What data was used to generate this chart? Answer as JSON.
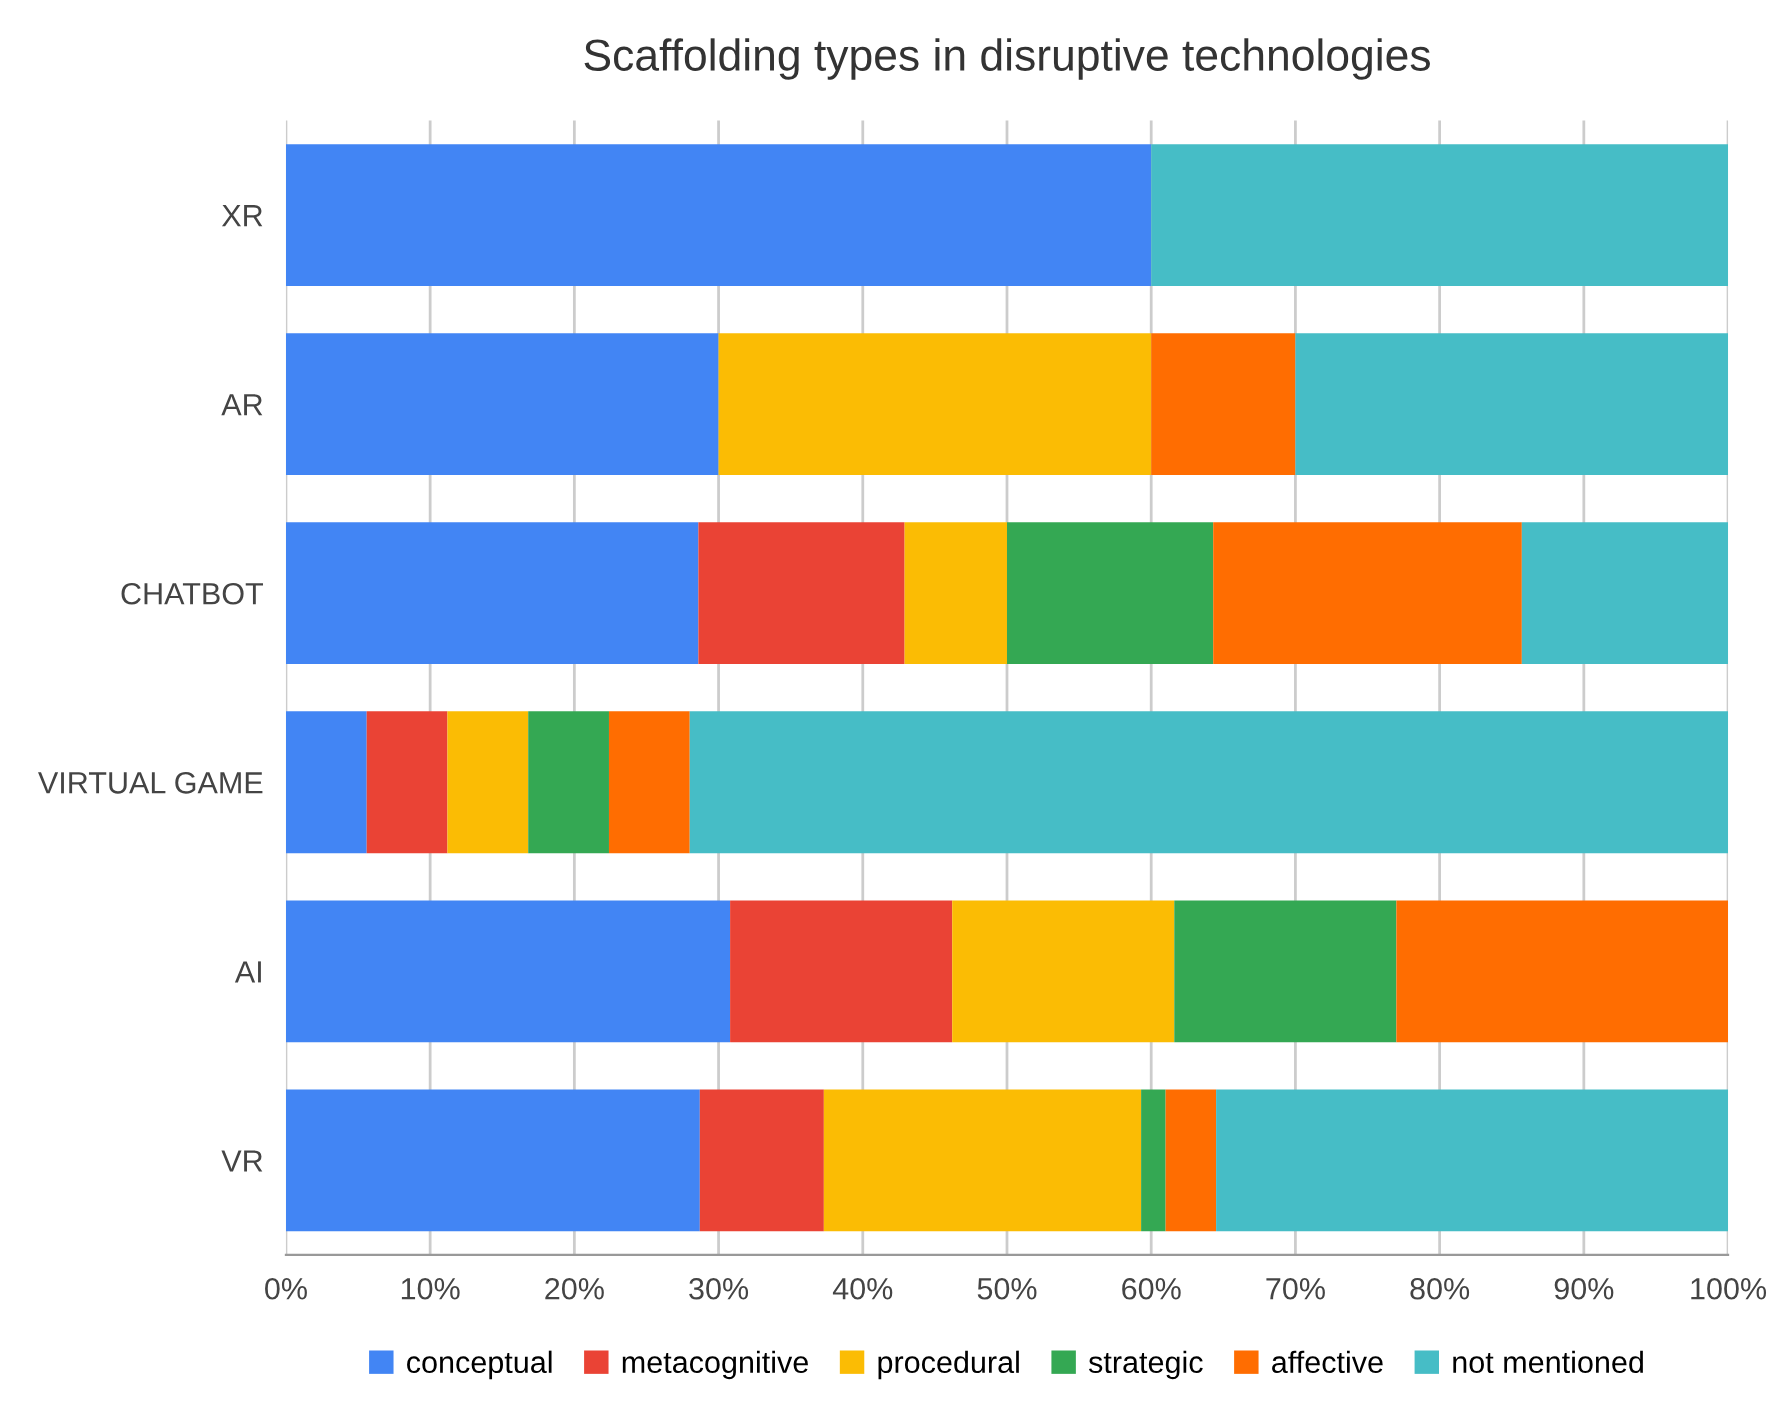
{
  "chart_data": {
    "type": "bar",
    "orientation": "horizontal",
    "stacked": true,
    "title": "Scaffolding types in disruptive technologies",
    "categories": [
      "XR",
      "AR",
      "CHATBOT",
      "VIRTUAL GAME",
      "AI",
      "VR"
    ],
    "series": [
      {
        "name": "conceptual",
        "color": "#4285f4",
        "values": [
          60,
          30,
          28.6,
          5.6,
          30.8,
          28.7
        ]
      },
      {
        "name": "metacognitive",
        "color": "#ea4335",
        "values": [
          0,
          0,
          14.3,
          5.6,
          15.4,
          8.6
        ]
      },
      {
        "name": "procedural",
        "color": "#fbbc04",
        "values": [
          0,
          30,
          7.1,
          5.6,
          15.4,
          22.0
        ]
      },
      {
        "name": "strategic",
        "color": "#34a853",
        "values": [
          0,
          0,
          14.3,
          5.6,
          15.4,
          1.7
        ]
      },
      {
        "name": "affective",
        "color": "#ff6d01",
        "values": [
          0,
          10,
          21.4,
          5.6,
          23.0,
          3.5
        ]
      },
      {
        "name": "not mentioned",
        "color": "#46bdc6",
        "values": [
          40,
          30,
          14.3,
          72.0,
          0,
          35.5
        ]
      }
    ],
    "xlim": [
      0,
      100
    ],
    "xticks": [
      {
        "value": 0,
        "label": "0%"
      },
      {
        "value": 10,
        "label": "10%"
      },
      {
        "value": 20,
        "label": "20%"
      },
      {
        "value": 30,
        "label": "30%"
      },
      {
        "value": 40,
        "label": "40%"
      },
      {
        "value": 50,
        "label": "50%"
      },
      {
        "value": 60,
        "label": "60%"
      },
      {
        "value": 70,
        "label": "70%"
      },
      {
        "value": 80,
        "label": "80%"
      },
      {
        "value": 90,
        "label": "90%"
      },
      {
        "value": 100,
        "label": "100%"
      }
    ],
    "grid": "x",
    "legend": "bottom"
  }
}
